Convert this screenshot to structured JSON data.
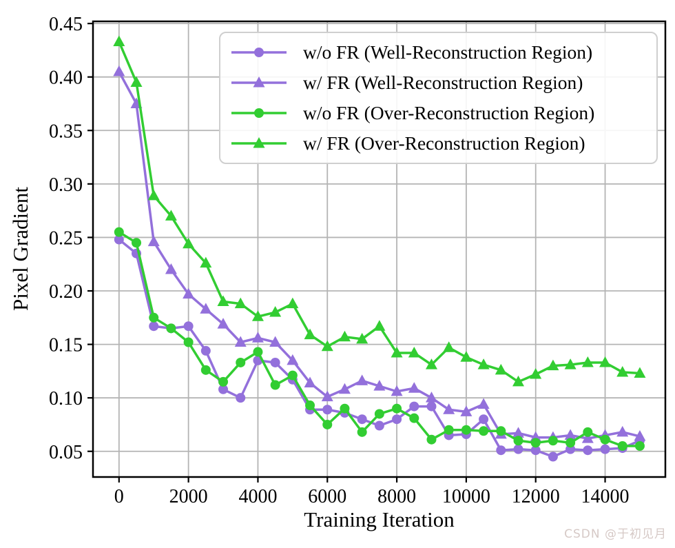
{
  "figure": {
    "xlabel": "Training Iteration",
    "ylabel": "Pixel Gradient",
    "watermark": "CSDN @于初见月"
  },
  "chart_data": {
    "type": "line",
    "title": "",
    "xlabel": "Training Iteration",
    "ylabel": "Pixel Gradient",
    "grid": true,
    "legend_position": "upper right",
    "xlim": [
      -750,
      15735
    ],
    "ylim": [
      0.026,
      0.452
    ],
    "x_ticks": [
      "0",
      "2000",
      "4000",
      "6000",
      "8000",
      "10000",
      "12000",
      "14000"
    ],
    "x_tick_values": [
      0,
      2000,
      4000,
      6000,
      8000,
      10000,
      12000,
      14000
    ],
    "y_ticks": [
      "0.05",
      "0.10",
      "0.15",
      "0.20",
      "0.25",
      "0.30",
      "0.35",
      "0.40",
      "0.45"
    ],
    "y_tick_values": [
      0.05,
      0.1,
      0.15,
      0.2,
      0.25,
      0.3,
      0.35,
      0.4,
      0.45
    ],
    "x": [
      0,
      500,
      1000,
      1500,
      2000,
      2500,
      3000,
      3500,
      4000,
      4500,
      5000,
      5500,
      6000,
      6500,
      7000,
      7500,
      8000,
      8500,
      9000,
      9500,
      10000,
      10500,
      11000,
      11500,
      12000,
      12500,
      13000,
      13500,
      14000,
      14500,
      15000
    ],
    "series": [
      {
        "label": "w/o FR (Well-Reconstruction Region)",
        "color": "#9370DB",
        "marker": "circle",
        "values": [
          0.248,
          0.235,
          0.167,
          0.165,
          0.167,
          0.144,
          0.108,
          0.1,
          0.135,
          0.133,
          0.117,
          0.089,
          0.089,
          0.086,
          0.08,
          0.074,
          0.08,
          0.092,
          0.092,
          0.065,
          0.066,
          0.08,
          0.051,
          0.052,
          0.051,
          0.045,
          0.052,
          0.051,
          0.052,
          0.053,
          0.06
        ]
      },
      {
        "label": "w/ FR (Well-Reconstruction Region)",
        "color": "#9370DB",
        "marker": "triangle",
        "values": [
          0.405,
          0.375,
          0.246,
          0.22,
          0.197,
          0.183,
          0.169,
          0.152,
          0.156,
          0.152,
          0.135,
          0.114,
          0.101,
          0.108,
          0.116,
          0.111,
          0.106,
          0.109,
          0.1,
          0.089,
          0.087,
          0.094,
          0.066,
          0.067,
          0.063,
          0.063,
          0.065,
          0.062,
          0.065,
          0.068,
          0.064
        ]
      },
      {
        "label": "w/o FR (Over-Reconstruction Region)",
        "color": "#32CD32",
        "marker": "circle",
        "values": [
          0.255,
          0.245,
          0.175,
          0.165,
          0.152,
          0.126,
          0.115,
          0.133,
          0.143,
          0.112,
          0.121,
          0.093,
          0.075,
          0.09,
          0.068,
          0.085,
          0.09,
          0.081,
          0.061,
          0.07,
          0.07,
          0.069,
          0.069,
          0.06,
          0.058,
          0.06,
          0.058,
          0.068,
          0.061,
          0.055,
          0.055
        ]
      },
      {
        "label": "w/ FR (Over-Reconstruction Region)",
        "color": "#32CD32",
        "marker": "triangle",
        "values": [
          0.433,
          0.395,
          0.289,
          0.27,
          0.244,
          0.226,
          0.19,
          0.188,
          0.176,
          0.18,
          0.188,
          0.159,
          0.148,
          0.157,
          0.155,
          0.167,
          0.142,
          0.142,
          0.131,
          0.147,
          0.138,
          0.131,
          0.126,
          0.115,
          0.122,
          0.13,
          0.131,
          0.133,
          0.133,
          0.124,
          0.123
        ]
      }
    ]
  }
}
